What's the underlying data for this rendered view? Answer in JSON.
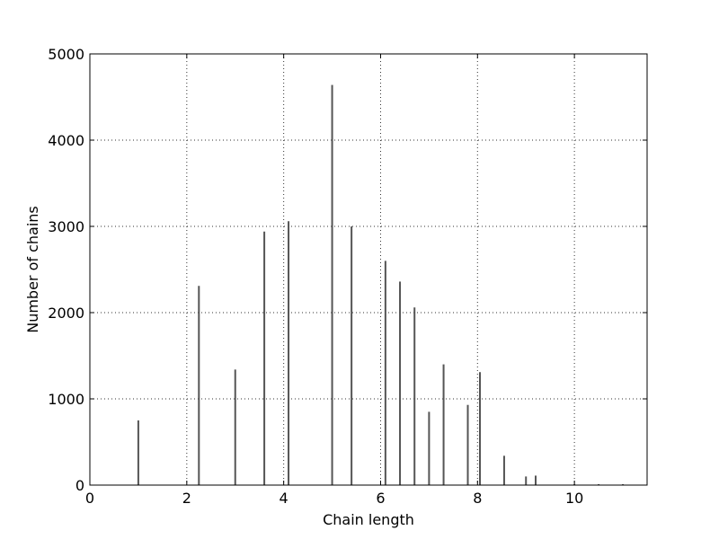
{
  "chart_data": {
    "type": "bar",
    "title": "",
    "xlabel": "Chain length",
    "ylabel": "Number of chains",
    "xlim": [
      0,
      11.5
    ],
    "ylim": [
      0,
      5000
    ],
    "xticks": [
      0,
      2,
      4,
      6,
      8,
      10
    ],
    "yticks": [
      0,
      1000,
      2000,
      3000,
      4000,
      5000
    ],
    "grid": true,
    "bar_color": "#555555",
    "bars": [
      {
        "x": 1.0,
        "y": 750
      },
      {
        "x": 2.25,
        "y": 2310
      },
      {
        "x": 3.0,
        "y": 1340
      },
      {
        "x": 3.6,
        "y": 2940
      },
      {
        "x": 4.1,
        "y": 3060
      },
      {
        "x": 5.0,
        "y": 4640
      },
      {
        "x": 5.4,
        "y": 3000
      },
      {
        "x": 6.1,
        "y": 2600
      },
      {
        "x": 6.4,
        "y": 2360
      },
      {
        "x": 6.7,
        "y": 2060
      },
      {
        "x": 7.0,
        "y": 850
      },
      {
        "x": 7.3,
        "y": 1400
      },
      {
        "x": 7.8,
        "y": 930
      },
      {
        "x": 8.05,
        "y": 1310
      },
      {
        "x": 8.55,
        "y": 340
      },
      {
        "x": 9.0,
        "y": 100
      },
      {
        "x": 9.2,
        "y": 110
      },
      {
        "x": 10.0,
        "y": 10
      },
      {
        "x": 10.5,
        "y": 8
      },
      {
        "x": 11.0,
        "y": 5
      }
    ]
  }
}
